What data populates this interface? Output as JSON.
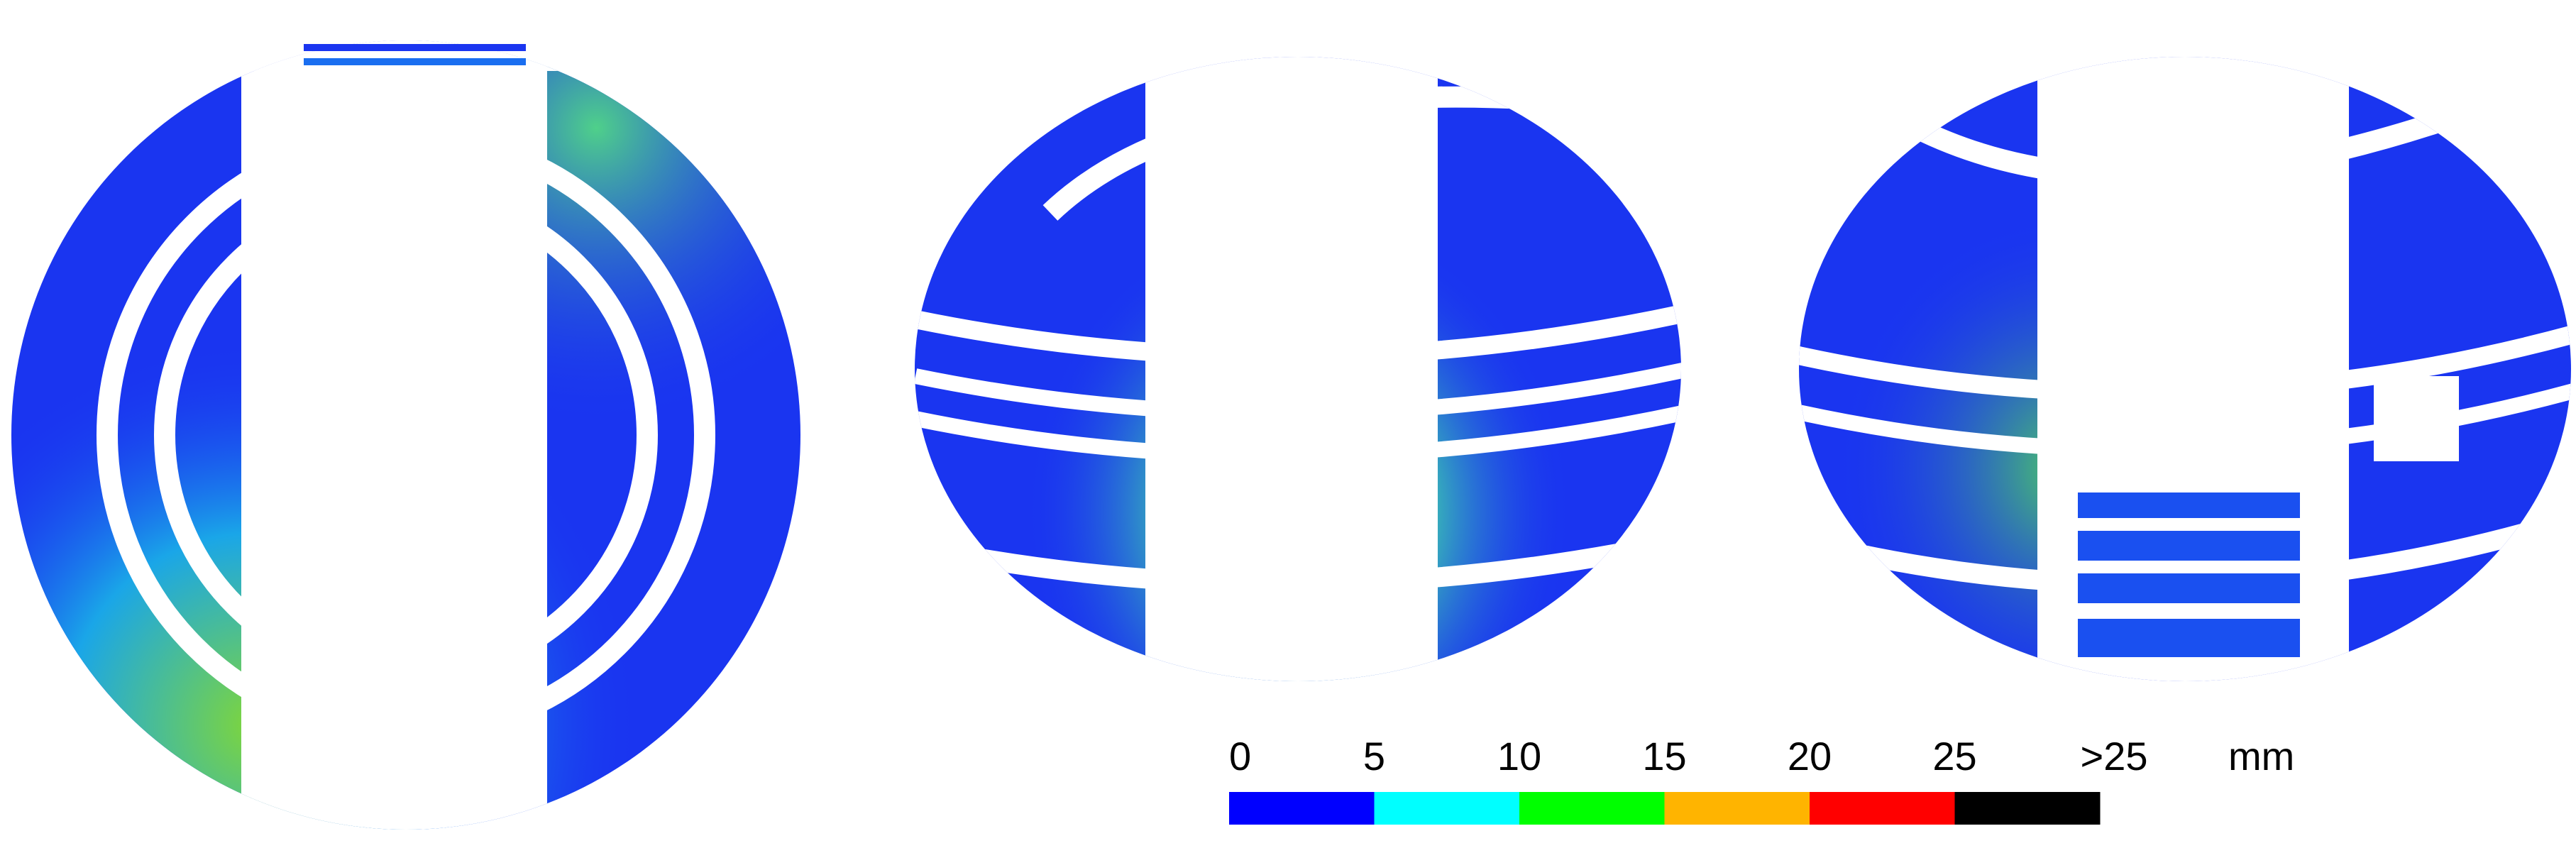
{
  "chart_data": {
    "type": "colorbar",
    "ticks": [
      0,
      5,
      10,
      15,
      20,
      25
    ],
    "overflow_label": ">25",
    "unit": "mm",
    "colors": [
      "#0000ff",
      "#00ffff",
      "#00ff00",
      "#ffb400",
      "#ff0000",
      "#000000"
    ]
  }
}
